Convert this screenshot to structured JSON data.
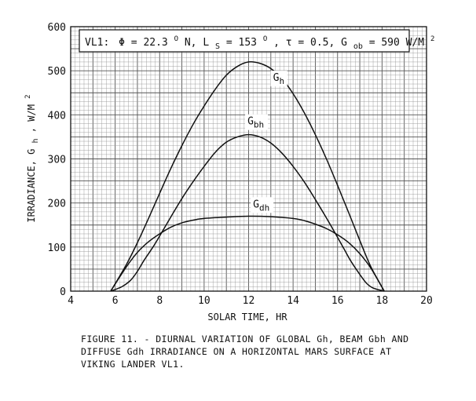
{
  "chart_data": {
    "type": "line",
    "annotation": {
      "prefix": "VL1:",
      "phi": "Φ = 22.3",
      "deg1": "O",
      "n": " N, L",
      "ls_sub": "S",
      "ls_val": " = 153",
      "deg2": "O",
      "tau": ", τ = 0.5, G",
      "gob_sub": "ob",
      "gob_val": " = 590 W/M",
      "sup2": "2"
    },
    "xlabel": "SOLAR TIME, HR",
    "ylabel": {
      "main": "IRRADIANCE, G",
      "sub": "h",
      "unit": ", W/M",
      "sup": "2"
    },
    "xlim": [
      4,
      20
    ],
    "ylim": [
      0,
      600
    ],
    "xticks": [
      "4",
      "6",
      "8",
      "10",
      "12",
      "14",
      "16",
      "18",
      "20"
    ],
    "yticks": [
      "0",
      "100",
      "200",
      "300",
      "400",
      "500",
      "600"
    ],
    "grid": true,
    "series": [
      {
        "name": "G",
        "name_sub": "h",
        "color": "#111111",
        "x": [
          5.8,
          6.5,
          7,
          7.5,
          8,
          8.5,
          9,
          9.5,
          10,
          10.5,
          11,
          11.5,
          12,
          12.5,
          13,
          13.5,
          14,
          14.5,
          15,
          15.5,
          16,
          16.5,
          17,
          17.5,
          18.1
        ],
        "y": [
          0,
          60,
          110,
          165,
          222,
          278,
          330,
          378,
          420,
          458,
          490,
          510,
          520,
          517,
          505,
          482,
          448,
          405,
          355,
          300,
          240,
          178,
          115,
          55,
          0
        ],
        "label_at": [
          13.1,
          477
        ]
      },
      {
        "name": "G",
        "name_sub": "bh",
        "color": "#111111",
        "x": [
          5.8,
          6.3,
          6.7,
          7,
          7.3,
          7.7,
          8,
          8.5,
          9,
          9.5,
          10,
          10.5,
          11,
          11.5,
          12,
          12.5,
          13,
          13.5,
          14,
          14.5,
          15,
          15.5,
          16,
          16.3,
          16.6,
          17,
          17.3,
          17.6,
          18.1
        ],
        "y": [
          0,
          10,
          25,
          45,
          70,
          100,
          125,
          168,
          210,
          248,
          283,
          315,
          338,
          350,
          355,
          350,
          336,
          313,
          283,
          248,
          208,
          166,
          122,
          95,
          68,
          38,
          18,
          7,
          0
        ],
        "label_at": [
          11.95,
          378
        ]
      },
      {
        "name": "G",
        "name_sub": "dh",
        "color": "#111111",
        "x": [
          5.8,
          6.2,
          6.6,
          7,
          7.5,
          8,
          8.5,
          9,
          9.5,
          10,
          11,
          12,
          13,
          14,
          14.5,
          15,
          15.5,
          16,
          16.5,
          17,
          17.5,
          18.1
        ],
        "y": [
          0,
          32,
          62,
          88,
          112,
          130,
          145,
          155,
          161,
          165,
          168,
          170,
          169,
          165,
          160,
          152,
          142,
          128,
          110,
          85,
          52,
          0
        ],
        "label_at": [
          12.2,
          190
        ]
      }
    ]
  },
  "caption": "FIGURE 11. - DIURNAL VARIATION OF GLOBAL Gh, BEAM Gbh AND\n    DIFFUSE Gdh IRRADIANCE ON A HORIZONTAL MARS SURFACE AT\n    VIKING LANDER VL1."
}
